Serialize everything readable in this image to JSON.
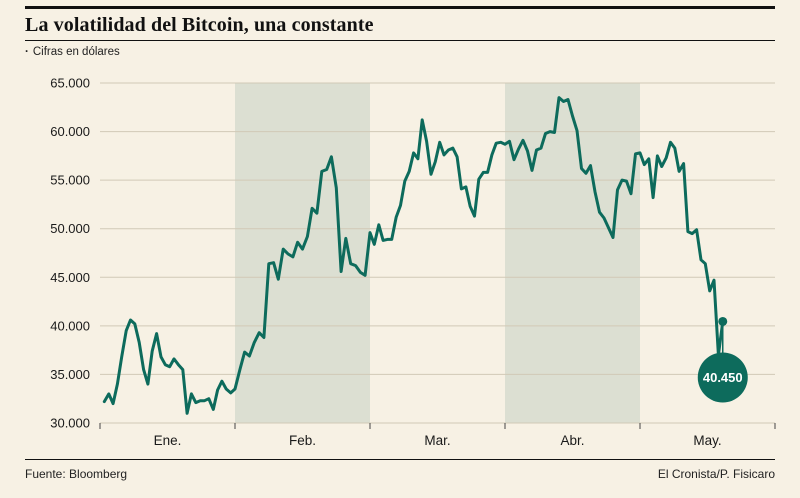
{
  "header": {
    "title": "La volatilidad del Bitcoin, una constante",
    "bullet": "·",
    "subtitle": "Cifras en dólares"
  },
  "footer": {
    "source": "Fuente: Bloomberg",
    "credit": "El Cronista/P. Fisicaro"
  },
  "chart_data": {
    "type": "line",
    "title": "La volatilidad del Bitcoin, una constante",
    "subtitle": "Cifras en dólares",
    "xlabel": "",
    "ylabel": "",
    "ylim": [
      30000,
      65000
    ],
    "yticks": [
      30000,
      35000,
      40000,
      45000,
      50000,
      55000,
      60000,
      65000
    ],
    "ytick_labels": [
      "30.000",
      "35.000",
      "40.000",
      "45.000",
      "50.000",
      "55.000",
      "60.000",
      "65.000"
    ],
    "categories": [
      "Ene.",
      "Feb.",
      "Mar.",
      "Abr.",
      "May."
    ],
    "shaded_months": [
      1,
      3
    ],
    "grid": true,
    "legend": "none",
    "colors": {
      "line": "#0d6b5c",
      "band": "#dcdfd2",
      "grid": "#d1c9b6",
      "background": "#f7f1e4",
      "text": "#1a1a1a",
      "axis": "#444444"
    },
    "end_callout": {
      "label": "40.450",
      "value": 40450
    },
    "series": [
      {
        "name": "Bitcoin",
        "points": [
          [
            0.032,
            32200
          ],
          [
            0.065,
            33000
          ],
          [
            0.097,
            32000
          ],
          [
            0.129,
            34000
          ],
          [
            0.161,
            36800
          ],
          [
            0.194,
            39500
          ],
          [
            0.226,
            40600
          ],
          [
            0.258,
            40200
          ],
          [
            0.29,
            38300
          ],
          [
            0.323,
            35500
          ],
          [
            0.355,
            34000
          ],
          [
            0.387,
            37400
          ],
          [
            0.419,
            39200
          ],
          [
            0.452,
            36800
          ],
          [
            0.484,
            36000
          ],
          [
            0.516,
            35800
          ],
          [
            0.548,
            36600
          ],
          [
            0.581,
            36000
          ],
          [
            0.613,
            35500
          ],
          [
            0.645,
            31000
          ],
          [
            0.677,
            33000
          ],
          [
            0.71,
            32100
          ],
          [
            0.742,
            32300
          ],
          [
            0.774,
            32300
          ],
          [
            0.806,
            32500
          ],
          [
            0.839,
            31400
          ],
          [
            0.871,
            33400
          ],
          [
            0.903,
            34300
          ],
          [
            0.935,
            33500
          ],
          [
            0.968,
            33100
          ],
          [
            1.0,
            33500
          ],
          [
            1.036,
            35500
          ],
          [
            1.071,
            37300
          ],
          [
            1.107,
            36900
          ],
          [
            1.143,
            38300
          ],
          [
            1.179,
            39300
          ],
          [
            1.214,
            38800
          ],
          [
            1.25,
            46400
          ],
          [
            1.286,
            46500
          ],
          [
            1.321,
            44800
          ],
          [
            1.357,
            47900
          ],
          [
            1.393,
            47400
          ],
          [
            1.429,
            47100
          ],
          [
            1.464,
            48600
          ],
          [
            1.5,
            47900
          ],
          [
            1.536,
            49200
          ],
          [
            1.571,
            52100
          ],
          [
            1.607,
            51600
          ],
          [
            1.643,
            55900
          ],
          [
            1.679,
            56100
          ],
          [
            1.714,
            57400
          ],
          [
            1.75,
            54200
          ],
          [
            1.786,
            45600
          ],
          [
            1.821,
            49000
          ],
          [
            1.857,
            46400
          ],
          [
            1.893,
            46200
          ],
          [
            1.929,
            45500
          ],
          [
            1.964,
            45200
          ],
          [
            2.0,
            49600
          ],
          [
            2.032,
            48400
          ],
          [
            2.065,
            50400
          ],
          [
            2.097,
            48800
          ],
          [
            2.129,
            48900
          ],
          [
            2.161,
            48900
          ],
          [
            2.194,
            51200
          ],
          [
            2.226,
            52400
          ],
          [
            2.258,
            54900
          ],
          [
            2.29,
            55900
          ],
          [
            2.323,
            57800
          ],
          [
            2.355,
            57200
          ],
          [
            2.387,
            61200
          ],
          [
            2.419,
            59000
          ],
          [
            2.452,
            55600
          ],
          [
            2.484,
            56900
          ],
          [
            2.516,
            58900
          ],
          [
            2.548,
            57600
          ],
          [
            2.581,
            58100
          ],
          [
            2.613,
            58300
          ],
          [
            2.645,
            57400
          ],
          [
            2.677,
            54100
          ],
          [
            2.71,
            54300
          ],
          [
            2.742,
            52300
          ],
          [
            2.774,
            51300
          ],
          [
            2.806,
            55100
          ],
          [
            2.839,
            55800
          ],
          [
            2.871,
            55800
          ],
          [
            2.903,
            57600
          ],
          [
            2.935,
            58800
          ],
          [
            2.968,
            58900
          ],
          [
            3.0,
            58700
          ],
          [
            3.033,
            59000
          ],
          [
            3.067,
            57100
          ],
          [
            3.1,
            58200
          ],
          [
            3.133,
            59100
          ],
          [
            3.167,
            58000
          ],
          [
            3.2,
            56000
          ],
          [
            3.233,
            58100
          ],
          [
            3.267,
            58300
          ],
          [
            3.3,
            59800
          ],
          [
            3.333,
            60000
          ],
          [
            3.367,
            59900
          ],
          [
            3.4,
            63500
          ],
          [
            3.433,
            63100
          ],
          [
            3.467,
            63300
          ],
          [
            3.5,
            61600
          ],
          [
            3.533,
            60100
          ],
          [
            3.567,
            56200
          ],
          [
            3.6,
            55700
          ],
          [
            3.633,
            56500
          ],
          [
            3.667,
            53800
          ],
          [
            3.7,
            51700
          ],
          [
            3.733,
            51100
          ],
          [
            3.767,
            50100
          ],
          [
            3.8,
            49100
          ],
          [
            3.833,
            54000
          ],
          [
            3.867,
            55000
          ],
          [
            3.9,
            54900
          ],
          [
            3.933,
            53600
          ],
          [
            3.967,
            57700
          ],
          [
            4.0,
            57800
          ],
          [
            4.032,
            56600
          ],
          [
            4.065,
            57200
          ],
          [
            4.097,
            53200
          ],
          [
            4.129,
            57500
          ],
          [
            4.161,
            56400
          ],
          [
            4.194,
            57300
          ],
          [
            4.226,
            58900
          ],
          [
            4.258,
            58300
          ],
          [
            4.29,
            55900
          ],
          [
            4.323,
            56700
          ],
          [
            4.355,
            49700
          ],
          [
            4.387,
            49500
          ],
          [
            4.419,
            49900
          ],
          [
            4.452,
            46800
          ],
          [
            4.484,
            46400
          ],
          [
            4.516,
            43600
          ],
          [
            4.548,
            44700
          ],
          [
            4.581,
            37000
          ],
          [
            4.613,
            40450
          ]
        ]
      }
    ]
  }
}
